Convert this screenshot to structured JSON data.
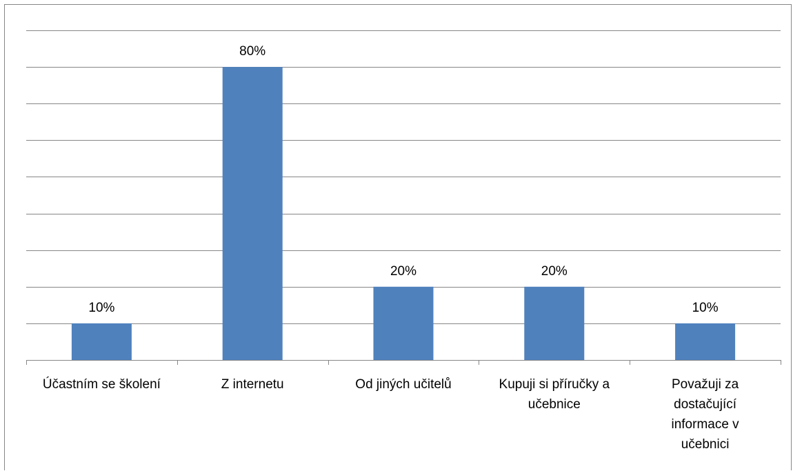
{
  "chart_data": {
    "type": "bar",
    "title": "",
    "xlabel": "",
    "ylabel": "",
    "ylim": [
      0,
      0.9
    ],
    "grid": true,
    "legend": "none",
    "bar_color": "#4f81bd",
    "categories": [
      [
        "Účastním se školení"
      ],
      [
        "Z internetu"
      ],
      [
        "Od jiných učitelů"
      ],
      [
        "Kupuji si příručky a",
        "učebnice"
      ],
      [
        "Považuji za",
        "dostačující",
        "informace v",
        "učebnici"
      ]
    ],
    "values": [
      0.1,
      0.8,
      0.2,
      0.2,
      0.1
    ],
    "data_labels": [
      "10%",
      "80%",
      "20%",
      "20%",
      "10%"
    ]
  }
}
